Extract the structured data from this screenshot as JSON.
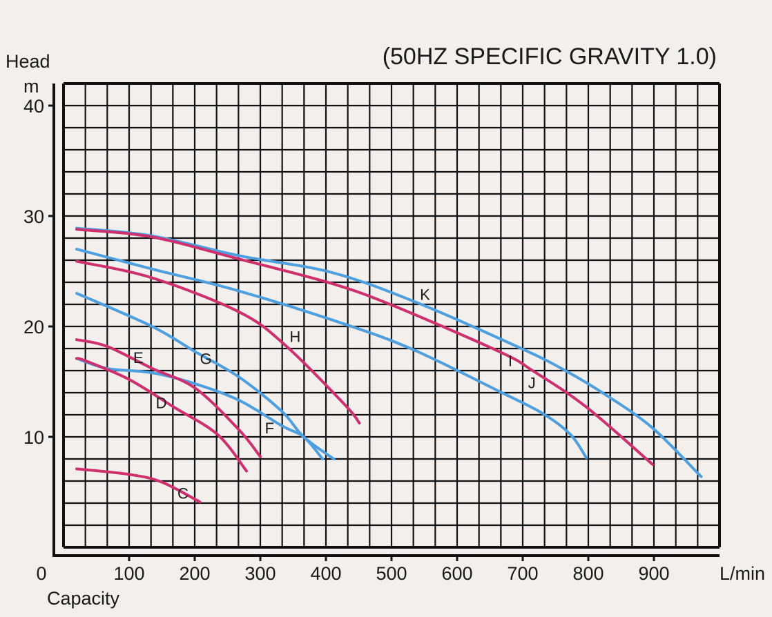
{
  "chart_data": {
    "type": "line",
    "title": "(50HZ SPECIFIC GRAVITY 1.0)",
    "ylabel": "Head",
    "yunit": "m",
    "xlabel": "Capacity",
    "xunit": "L/min",
    "xlim": [
      0,
      1000
    ],
    "ylim": [
      0,
      42
    ],
    "xticks": [
      0,
      100,
      200,
      300,
      400,
      500,
      600,
      700,
      800,
      900
    ],
    "yticks": [
      10,
      20,
      30,
      40
    ],
    "grid": true,
    "colors": {
      "blue": "#4d9fe0",
      "pink": "#cf2f6c",
      "background": "#f2efed",
      "grid": "#111111"
    },
    "series": [
      {
        "name": "K",
        "color": "blue",
        "label_at": [
          551,
          22.9
        ],
        "x": [
          20,
          135,
          268,
          408,
          537,
          698,
          765,
          828,
          898,
          972
        ],
        "y": [
          28.9,
          28.2,
          26.4,
          24.9,
          22.2,
          18.0,
          16.0,
          13.75,
          10.8,
          6.4
        ]
      },
      {
        "name": "J",
        "color": "pink",
        "label_at": [
          714,
          14.9
        ],
        "x": [
          20,
          135,
          268,
          408,
          502,
          665,
          715,
          797,
          898
        ],
        "y": [
          28.8,
          28.1,
          26.1,
          23.9,
          21.9,
          17.7,
          16.0,
          12.7,
          7.5
        ]
      },
      {
        "name": "I",
        "color": "blue",
        "label_at": [
          681,
          16.9
        ],
        "x": [
          20,
          135,
          268,
          429,
          533,
          665,
          731,
          773,
          797
        ],
        "y": [
          27.0,
          25.2,
          23.2,
          20.2,
          17.9,
          14.1,
          12.1,
          10.2,
          8.1
        ]
      },
      {
        "name": "H",
        "color": "pink",
        "label_at": [
          353,
          19.1
        ],
        "x": [
          20,
          135,
          268,
          338,
          429,
          451
        ],
        "y": [
          25.9,
          24.4,
          21.3,
          18.3,
          12.9,
          11.25
        ]
      },
      {
        "name": "G",
        "color": "blue",
        "label_at": [
          217,
          17.1
        ],
        "x": [
          20,
          135,
          201,
          268,
          333,
          366,
          412
        ],
        "y": [
          23.0,
          20.0,
          17.7,
          15.4,
          12.3,
          10.0,
          8.0
        ]
      },
      {
        "name": "F",
        "color": "blue",
        "label_at": [
          314,
          10.8
        ],
        "x": [
          20,
          66,
          135,
          201,
          268,
          333,
          366,
          395
        ],
        "y": [
          17.1,
          16.2,
          15.8,
          14.8,
          13.3,
          11.0,
          10.0,
          8.0
        ]
      },
      {
        "name": "E",
        "color": "pink",
        "label_at": [
          114,
          17.2
        ],
        "x": [
          20,
          66,
          135,
          201,
          268,
          300
        ],
        "y": [
          18.8,
          18.2,
          16.2,
          14.4,
          10.6,
          8.2
        ]
      },
      {
        "name": "D",
        "color": "pink",
        "label_at": [
          149,
          13.1
        ],
        "x": [
          20,
          33,
          100,
          168,
          235,
          279
        ],
        "y": [
          17.1,
          16.9,
          15.2,
          12.7,
          10.2,
          6.9
        ]
      },
      {
        "name": "C",
        "color": "pink",
        "label_at": [
          182,
          4.9
        ],
        "x": [
          20,
          100,
          150,
          208
        ],
        "y": [
          7.1,
          6.6,
          5.9,
          4.1
        ]
      }
    ]
  }
}
